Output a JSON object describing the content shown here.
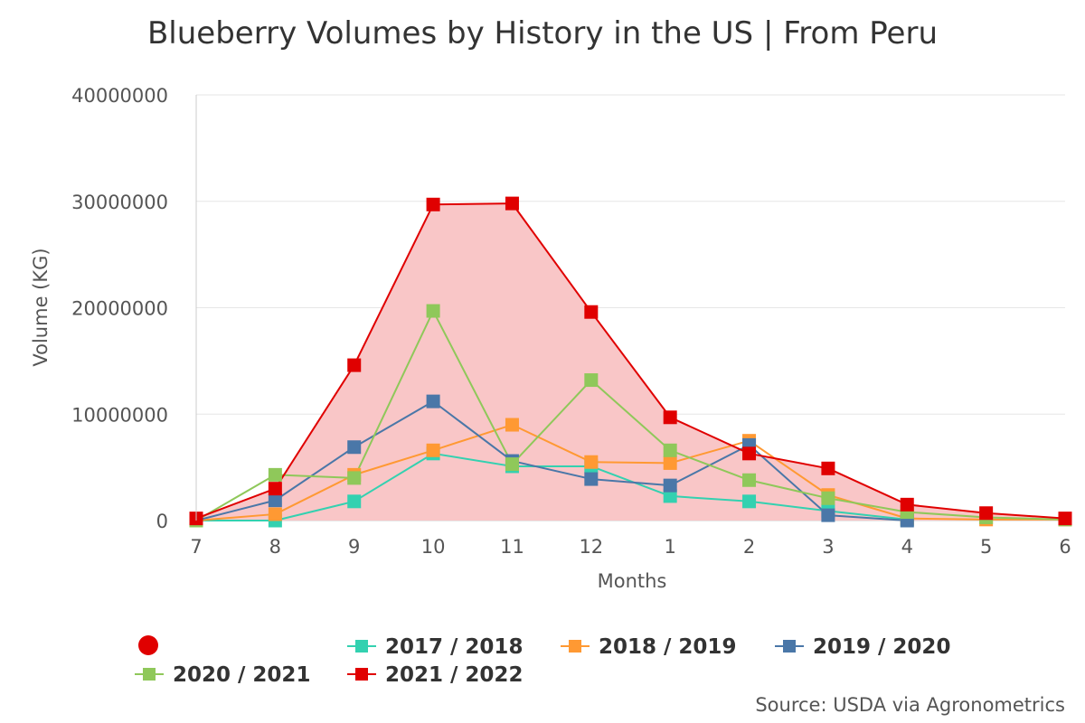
{
  "chart_data": {
    "type": "line",
    "title": "Blueberry Volumes by History in the US | From Peru",
    "xlabel": "Months",
    "ylabel": "Volume (KG)",
    "ylim": [
      0,
      40000000
    ],
    "yticks": [
      "0",
      "10000000",
      "20000000",
      "30000000",
      "40000000"
    ],
    "categories": [
      "7",
      "8",
      "9",
      "10",
      "11",
      "12",
      "1",
      "2",
      "3",
      "4",
      "5",
      "6"
    ],
    "grid": true,
    "legend_position": "bottom",
    "series": [
      {
        "name": "2017 / 2018",
        "color": "#33d1b0",
        "area": false,
        "values": [
          0,
          0,
          1800000,
          6300000,
          5100000,
          5100000,
          2300000,
          1800000,
          900000,
          100000,
          null,
          null
        ]
      },
      {
        "name": "2018 / 2019",
        "color": "#ff9933",
        "area": false,
        "values": [
          0,
          600000,
          4300000,
          6600000,
          9000000,
          5500000,
          5400000,
          7500000,
          2400000,
          200000,
          100000,
          100000
        ]
      },
      {
        "name": "2019 / 2020",
        "color": "#4a77a8",
        "area": false,
        "values": [
          0,
          1900000,
          6900000,
          11200000,
          5600000,
          3900000,
          3300000,
          7100000,
          500000,
          0,
          null,
          null
        ]
      },
      {
        "name": "2020 / 2021",
        "color": "#8fc85a",
        "area": false,
        "values": [
          0,
          4300000,
          4000000,
          19700000,
          5300000,
          13200000,
          6600000,
          3800000,
          2100000,
          800000,
          300000,
          100000
        ]
      },
      {
        "name": "2021 / 2022",
        "color": "#e00000",
        "area": true,
        "area_color": "#f9c6c7",
        "values": [
          200000,
          3000000,
          14600000,
          29700000,
          29800000,
          19600000,
          9700000,
          6300000,
          4900000,
          1500000,
          700000,
          200000
        ]
      }
    ],
    "legend_extra_marker_color": "#e00000",
    "source": "Source: USDA via Agronometrics"
  }
}
